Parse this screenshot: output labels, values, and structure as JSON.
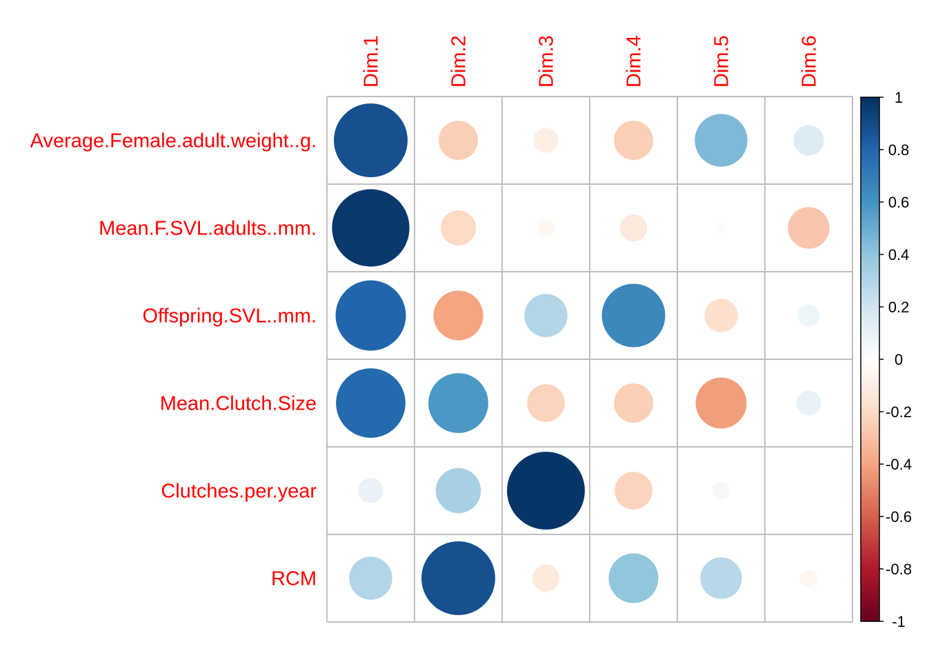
{
  "chart_data": {
    "type": "heatmap",
    "subtype": "correlation-circle-plot",
    "rows": [
      "Average.Female.adult.weight..g.",
      "Mean.F.SVL.adults..mm.",
      "Offspring.SVL..mm.",
      "Mean.Clutch.Size",
      "Clutches.per.year",
      "RCM"
    ],
    "columns": [
      "Dim.1",
      "Dim.2",
      "Dim.3",
      "Dim.4",
      "Dim.5",
      "Dim.6"
    ],
    "values": [
      [
        0.88,
        -0.25,
        -0.1,
        -0.25,
        0.45,
        0.15
      ],
      [
        0.97,
        -0.2,
        -0.05,
        -0.12,
        -0.02,
        -0.28
      ],
      [
        0.8,
        -0.4,
        0.3,
        0.65,
        -0.18,
        0.08
      ],
      [
        0.78,
        0.58,
        -0.23,
        -0.25,
        -0.42,
        0.1
      ],
      [
        0.1,
        0.33,
        0.98,
        -0.23,
        0.05,
        0.0
      ],
      [
        0.3,
        0.88,
        -0.12,
        0.4,
        0.28,
        -0.05
      ]
    ],
    "legend": {
      "position": "right",
      "ticks": [
        "1",
        "0.8",
        "0.6",
        "0.4",
        "0.2",
        "0",
        "-0.2",
        "-0.4",
        "-0.6",
        "-0.8",
        "-1"
      ],
      "range": [
        -1,
        1
      ],
      "palette": [
        "#67001f",
        "#b2182b",
        "#d6604d",
        "#f4a582",
        "#fddbc7",
        "#ffffff",
        "#d1e5f0",
        "#92c5de",
        "#4393c3",
        "#2166ac",
        "#053061"
      ]
    },
    "colors": {
      "label": "#ff0000",
      "grid": "#bebebe"
    }
  }
}
